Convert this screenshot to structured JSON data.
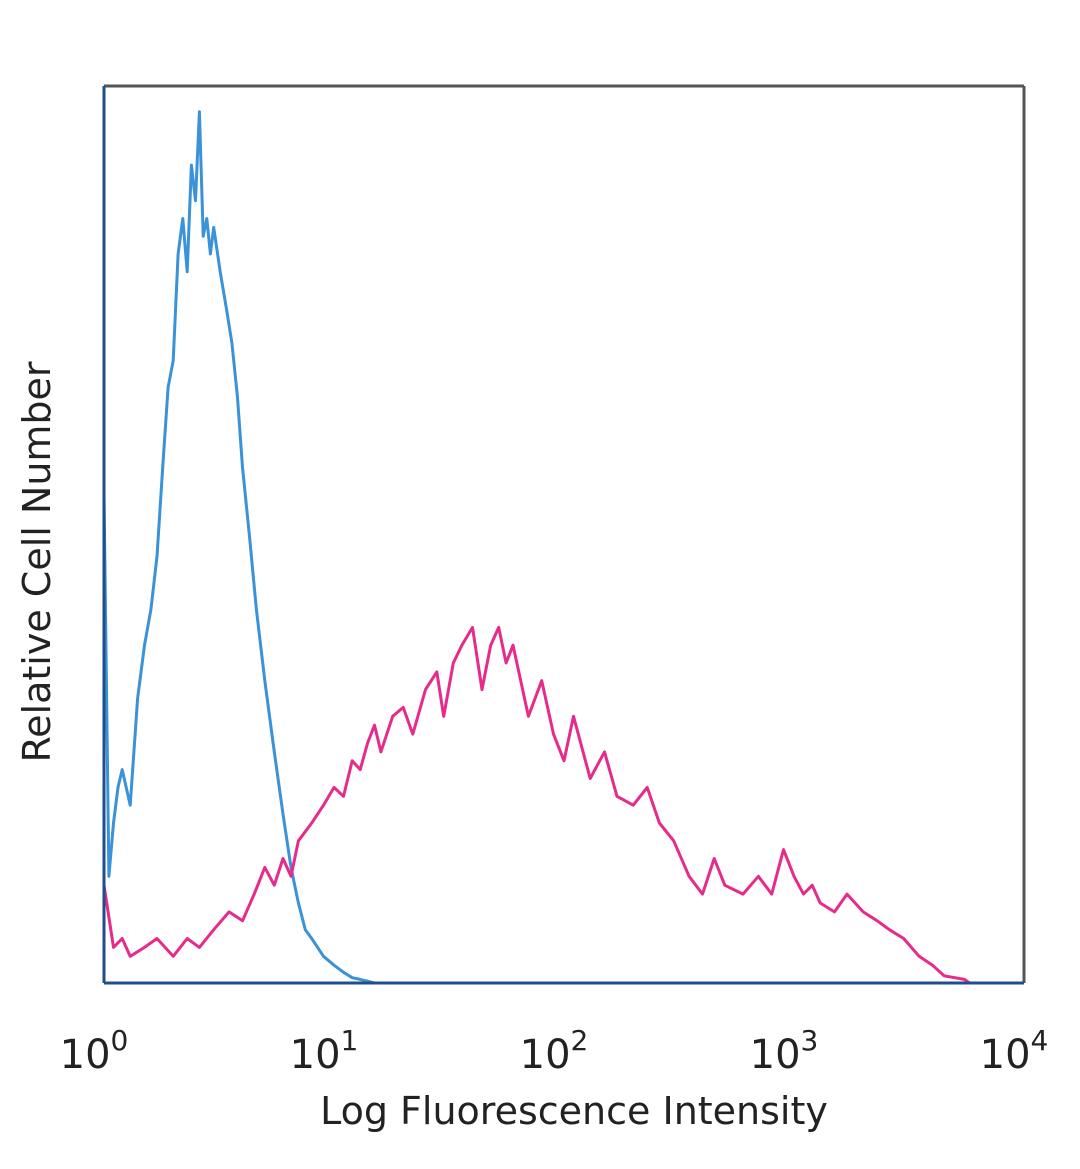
{
  "chart_data": {
    "type": "line",
    "xlabel": "Log Fluorescence Intensity",
    "ylabel": "Relative Cell Number",
    "xscale": "log",
    "xlim": [
      1,
      10000
    ],
    "ylim": [
      0,
      100
    ],
    "xticks": [
      {
        "base": "10",
        "exp": "0",
        "value": 1
      },
      {
        "base": "10",
        "exp": "1",
        "value": 10
      },
      {
        "base": "10",
        "exp": "2",
        "value": 100
      },
      {
        "base": "10",
        "exp": "3",
        "value": 1000
      },
      {
        "base": "10",
        "exp": "4",
        "value": 10000
      }
    ],
    "grid": false,
    "legend": "none",
    "colors": {
      "frame_left_bottom": "#1f4e8c",
      "frame_top_right": "#555555"
    },
    "series": [
      {
        "color": "#3a92d8",
        "x": [
          1.0,
          1.05,
          1.1,
          1.15,
          1.2,
          1.3,
          1.4,
          1.5,
          1.6,
          1.7,
          1.8,
          1.9,
          2.0,
          2.1,
          2.2,
          2.3,
          2.4,
          2.5,
          2.6,
          2.7,
          2.8,
          2.9,
          3.0,
          3.2,
          3.4,
          3.6,
          3.8,
          4.0,
          4.3,
          4.6,
          5.0,
          5.5,
          6.0,
          6.5,
          7.0,
          7.5,
          8.0,
          9.0,
          10.0,
          11.0,
          12.0,
          13.0,
          14.0,
          15.0
        ],
        "values": [
          55,
          12,
          18,
          22,
          24,
          20,
          32,
          38,
          42,
          48,
          58,
          67,
          70,
          82,
          86,
          80,
          92,
          88,
          98,
          84,
          86,
          82,
          85,
          80,
          76,
          72,
          66,
          58,
          50,
          42,
          34,
          26,
          19,
          13,
          9,
          6,
          5,
          3,
          2,
          1.2,
          0.6,
          0.4,
          0.2,
          0
        ]
      },
      {
        "color": "#e62b8a",
        "x": [
          1.0,
          1.1,
          1.2,
          1.3,
          1.5,
          1.7,
          2.0,
          2.3,
          2.6,
          3.0,
          3.5,
          4.0,
          4.5,
          5.0,
          5.5,
          6.0,
          6.5,
          7.0,
          8.0,
          9.0,
          10.0,
          11.0,
          12.0,
          13.0,
          14.0,
          15.0,
          16.0,
          18.0,
          20.0,
          22.0,
          25.0,
          28.0,
          30.0,
          33.0,
          36.0,
          40.0,
          44.0,
          48.0,
          52.0,
          56.0,
          60.0,
          70.0,
          80.0,
          90.0,
          100.0,
          110.0,
          130.0,
          150.0,
          170.0,
          200.0,
          230.0,
          260.0,
          300.0,
          350.0,
          400.0,
          450.0,
          500.0,
          600.0,
          700.0,
          800.0,
          900.0,
          1000.0,
          1100.0,
          1200.0,
          1300.0,
          1500.0,
          1700.0,
          2000.0,
          2300.0,
          2600.0,
          3000.0,
          3500.0,
          4000.0,
          4500.0,
          5000.0,
          5500.0,
          5800.0
        ],
        "values": [
          11,
          4,
          5,
          3,
          4,
          5,
          3,
          5,
          4,
          6,
          8,
          7,
          10,
          13,
          11,
          14,
          12,
          16,
          18,
          20,
          22,
          21,
          25,
          24,
          27,
          29,
          26,
          30,
          31,
          28,
          33,
          35,
          30,
          36,
          38,
          40,
          33,
          38,
          40,
          36,
          38,
          30,
          34,
          28,
          25,
          30,
          23,
          26,
          21,
          20,
          22,
          18,
          16,
          12,
          10,
          14,
          11,
          10,
          12,
          10,
          15,
          12,
          10,
          11,
          9,
          8,
          10,
          8,
          7,
          6,
          5,
          3,
          2,
          0.8,
          0.6,
          0.4,
          0
        ]
      }
    ]
  }
}
